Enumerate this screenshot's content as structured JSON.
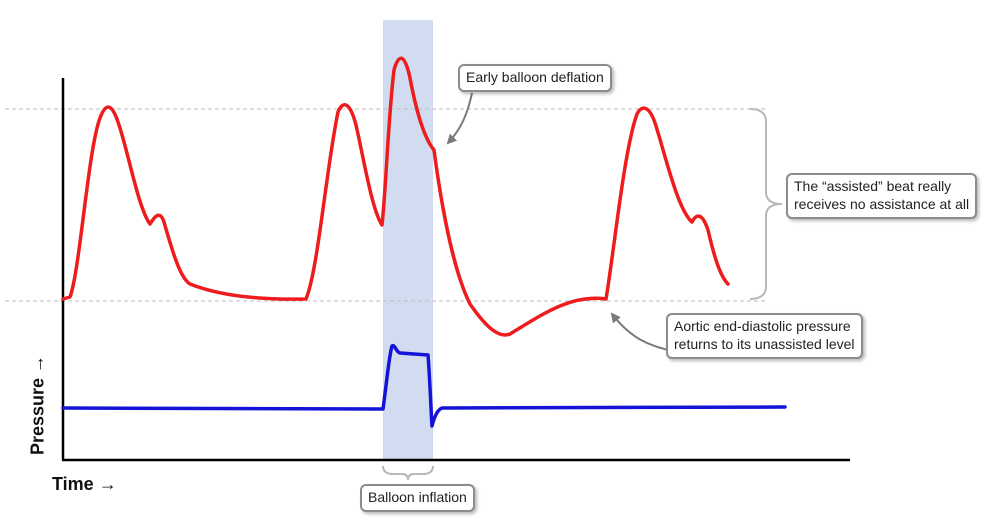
{
  "axes": {
    "x_label": "Time →",
    "y_label": "Pressure →"
  },
  "callouts": {
    "early_deflation": "Early balloon deflation",
    "assisted_beat": [
      "The “assisted” beat really",
      "receives no assistance at all"
    ],
    "aortic_pressure": [
      "Aortic end-diastolic pressure",
      "returns to its unassisted level"
    ],
    "balloon_inflation": "Balloon inflation"
  },
  "colors": {
    "aortic_trace": "#ee1c1c",
    "balloon_trace": "#1414d8",
    "inflation_band": "#c9d6ee",
    "reference_line": "#bdbdbd",
    "axis": "#000000",
    "callout_border": "#8c8c8c"
  }
}
